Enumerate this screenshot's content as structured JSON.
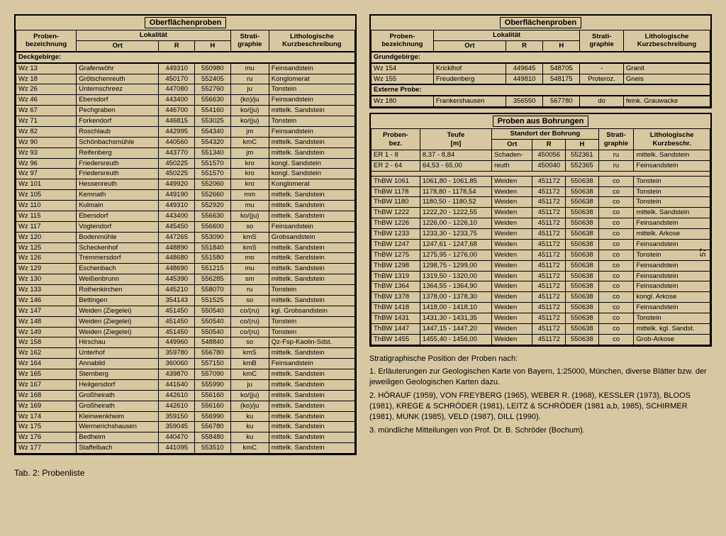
{
  "titles": {
    "ober": "Oberflächenproben",
    "bohr": "Proben aus Bohrungen"
  },
  "headers": {
    "proben": "Proben-\nbezeichnung",
    "lokal": "Lokalität",
    "ort": "Ort",
    "r": "R",
    "h": "H",
    "strati": "Strati-\ngraphie",
    "litho": "Lithologische\nKurzbeschreibung",
    "teufe": "Teufe\n[m]",
    "standort": "Standort der Bohrung",
    "bez": "Proben-\nbez.",
    "kurz": "Lithologische\nKurzbeschr."
  },
  "sections": {
    "deck": "Deckgebirge:",
    "grund": "Grundgebirge:",
    "ext": "Externe Probe:"
  },
  "left_rows": [
    [
      "Wz 13",
      "Grafenwöhr",
      "449310",
      "550980",
      "mu",
      "Feinsandstein"
    ],
    [
      "Wz 18",
      "Grötschenreuth",
      "450170",
      "552405",
      "ru",
      "Konglomerat"
    ],
    [
      "Wz 26",
      "Unternschreez",
      "447080",
      "552760",
      "ju",
      "Tonstein"
    ],
    [
      "Wz 46",
      "Ebersdorf",
      "443400",
      "556630",
      "(ko)/ju",
      "Feinsandstein"
    ],
    [
      "Wz 67",
      "Pechgraben",
      "446700",
      "554160",
      "ko/(ju)",
      "mittelk. Sandstein"
    ],
    [
      "Wz 71",
      "Forkendorf",
      "446815",
      "553025",
      "ko/(ju)",
      "Tonstein"
    ],
    [
      "Wz 82",
      "Roschlaub",
      "442995",
      "554340",
      "jm",
      "Feinsandstein"
    ],
    [
      "Wz 90",
      "Schönbachsmühle",
      "440560",
      "554320",
      "kmC",
      "mittelk. Sandstein"
    ],
    [
      "Wz 93",
      "Reifenberg",
      "443770",
      "551340",
      "jm",
      "mittelk. Sandstein"
    ],
    [
      "Wz 96",
      "Friedersreuth",
      "450225",
      "551570",
      "kro",
      "kongl. Sandstein"
    ],
    [
      "Wz 97",
      "Friedersreuth",
      "450225",
      "551570",
      "kro",
      "kongl. Sandstein"
    ],
    [
      "Wz 101",
      "Hessenreuth",
      "449920",
      "552060",
      "kro",
      "Konglomerat"
    ],
    [
      "Wz 105",
      "Kemnath",
      "449190",
      "552660",
      "mm",
      "mittelk. Sandstein"
    ],
    [
      "Wz 110",
      "Kulmain",
      "449310",
      "552920",
      "mu",
      "mittelk. Sandstein"
    ],
    [
      "Wz 115",
      "Ebersdorf",
      "443400",
      "556630",
      "ko/(ju)",
      "mittelk. Sandstein"
    ],
    [
      "Wz 117",
      "Vogtendorf",
      "445450",
      "556600",
      "so",
      "Feinsandstein"
    ],
    [
      "Wz 120",
      "Bodenmühle",
      "447265",
      "553090",
      "kmS",
      "Grobsandstein"
    ],
    [
      "Wz 125",
      "Scheckenhof",
      "448890",
      "551840",
      "kmS",
      "mittelk. Sandstein"
    ],
    [
      "Wz 126",
      "Tremmersdorf",
      "448680",
      "551580",
      "mo",
      "mittelk. Sandstein"
    ],
    [
      "Wz 129",
      "Eschenbach",
      "448690",
      "551215",
      "mu",
      "mittelk. Sandstein"
    ],
    [
      "Wz 130",
      "Weißenbrunn",
      "445390",
      "556285",
      "sm",
      "mittelk. Sandstein"
    ],
    [
      "Wz 133",
      "Rothenkirchen",
      "445210",
      "558070",
      "ru",
      "Tonstein"
    ],
    [
      "Wz 146",
      "Bettingen",
      "354143",
      "551525",
      "so",
      "mittelk. Sandstein"
    ],
    [
      "Wz 147",
      "Weiden (Ziegelei)",
      "451450",
      "550540",
      "co/(ru)",
      "kgl. Grobsandstein"
    ],
    [
      "Wz 148",
      "Weiden (Ziegelei)",
      "451450",
      "550540",
      "co/(ru)",
      "Tonstein"
    ],
    [
      "Wz 149",
      "Weiden (Ziegelei)",
      "451450",
      "550540",
      "co/(ru)",
      "Tonstein"
    ],
    [
      "Wz 158",
      "Hirschau",
      "449960",
      "548840",
      "so",
      "Qz-Fsp-Kaolin-Sdst."
    ],
    [
      "Wz 162",
      "Unterhof",
      "359780",
      "556780",
      "kmS",
      "mittelk. Sandstein"
    ],
    [
      "Wz 164",
      "Annabild",
      "360060",
      "557150",
      "kmB",
      "Feinsandstein"
    ],
    [
      "Wz 165",
      "Sternberg",
      "439870",
      "557090",
      "kmC",
      "mittelk. Sandstein"
    ],
    [
      "Wz 167",
      "Heilgersdorf",
      "441640",
      "555990",
      "ju",
      "mittelk. Sandstein"
    ],
    [
      "Wz 168",
      "Großheirath",
      "442610",
      "556160",
      "ko/(ju)",
      "mittelk. Sandstein"
    ],
    [
      "Wz 169",
      "Großheirath",
      "442610",
      "556160",
      "(ko)/ju",
      "mittelk. Sandstein"
    ],
    [
      "Wz 174",
      "Kleinwenkheim",
      "359150",
      "556990",
      "ku",
      "mittelk. Sandstein"
    ],
    [
      "Wz 175",
      "Wermerichshausen",
      "359045",
      "556780",
      "ku",
      "mittelk. Sandstein"
    ],
    [
      "Wz 176",
      "Bedheim",
      "440470",
      "558480",
      "ku",
      "mittelk. Sandstein"
    ],
    [
      "Wz 177",
      "Staffelbach",
      "441095",
      "553510",
      "kmC",
      "mittelk. Sandstein"
    ]
  ],
  "grund_rows": [
    [
      "Wz 154",
      "Kricklhof",
      "449645",
      "548705",
      "-",
      "Granit"
    ],
    [
      "Wz 155",
      "Freudenberg",
      "449810",
      "548175",
      "Proteroz.",
      "Gneis"
    ]
  ],
  "ext_rows": [
    [
      "Wz 180",
      "Frankershausen",
      "356550",
      "567780",
      "do",
      "feink. Grauwacke"
    ]
  ],
  "bohr_rows": [
    [
      "ER 1 - 8",
      "8,37 - 8,84",
      "Schaden-",
      "450056",
      "552361",
      "ru",
      "mittelk. Sandstein"
    ],
    [
      "ER 2 - 64",
      "64,53 - 65,00",
      "reuth",
      "450040",
      "552365",
      "ru",
      "Feinsandstein"
    ],
    [
      "ThBW 1061",
      "1061,80 - 1061,85",
      "Weiden",
      "451172",
      "550638",
      "co",
      "Tonstein"
    ],
    [
      "ThBW 1178",
      "1178,80 - 1178,54",
      "Weiden",
      "451172",
      "550638",
      "co",
      "Tonstein"
    ],
    [
      "ThBW 1180",
      "1180,50 - 1180,52",
      "Weiden",
      "451172",
      "550638",
      "co",
      "Tonstein"
    ],
    [
      "ThBW 1222",
      "1222,20 - 1222,55",
      "Weiden",
      "451172",
      "550638",
      "co",
      "mittelk. Sandstein"
    ],
    [
      "ThBW 1226",
      "1226,00 - 1226,10",
      "Weiden",
      "451172",
      "550638",
      "co",
      "Feinsandstein"
    ],
    [
      "ThBW 1233",
      "1233,30 - 1233,75",
      "Weiden",
      "451172",
      "550638",
      "co",
      "mittelk. Arkose"
    ],
    [
      "ThBW 1247",
      "1247,61 - 1247,68",
      "Weiden",
      "451172",
      "550638",
      "co",
      "Feinsandstein"
    ],
    [
      "ThBW 1275",
      "1275,95 - 1276,00",
      "Weiden",
      "451172",
      "550638",
      "co",
      "Tonstein"
    ],
    [
      "ThBW 1298",
      "1298,75 - 1299,00",
      "Weiden",
      "451172",
      "550638",
      "co",
      "Feinsandstein"
    ],
    [
      "ThBW 1319",
      "1319,50 - 1320,00",
      "Weiden",
      "451172",
      "550638",
      "co",
      "Feinsandstein"
    ],
    [
      "ThBW 1364",
      "1364,55 - 1364,90",
      "Weiden",
      "451172",
      "550638",
      "co",
      "Feinsandstein"
    ],
    [
      "ThBW 1378",
      "1378,00 - 1378,30",
      "Weiden",
      "451172",
      "550638",
      "co",
      "kongl. Arkose"
    ],
    [
      "ThBW 1418",
      "1418,00 - 1418,10",
      "Weiden",
      "451172",
      "550638",
      "co",
      "Feinsandstein"
    ],
    [
      "ThBW 1431",
      "1431,30 - 1431,35",
      "Weiden",
      "451172",
      "550638",
      "co",
      "Tonstein"
    ],
    [
      "ThBW 1447",
      "1447,15 - 1447,20",
      "Weiden",
      "451172",
      "550638",
      "co",
      "mittelk. kgl. Sandst."
    ],
    [
      "ThBW 1455",
      "1455,40 - 1456,00",
      "Weiden",
      "451172",
      "550638",
      "co",
      "Grob-Arkose"
    ]
  ],
  "caption": "Tab. 2: Probenliste",
  "notes_title": "Stratigraphische Position der Proben nach:",
  "notes": [
    "1. Erläuterungen zur Geologischen Karte von Bayern, 1:25000, München, diverse Blätter bzw. der jeweiligen Geologischen Karten dazu.",
    "2. HÖRAUF (1959), VON FREYBERG (1965), WEBER R. (1968), KESSLER (1973), BLOOS (1981), KREGE & SCHRÖDER (1981), LEITZ & SCHRÖDER (1981 a,b, 1985), SCHIRMER (1981), MUNK (1985), VELD (1987), DILL (1990).",
    "3. mündliche Mitteilungen von Prof. Dr. B. Schröder (Bochum)."
  ],
  "page_num": "57"
}
